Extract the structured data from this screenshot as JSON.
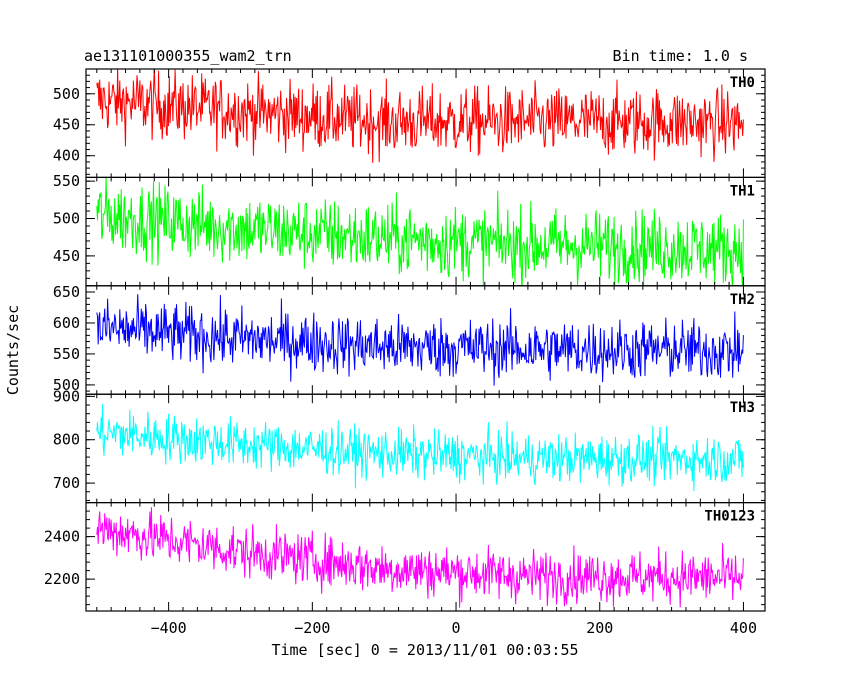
{
  "header": {
    "title": "ae131101000355_wam2_trn",
    "bin_time": "Bin time: 1.0 s"
  },
  "chart_data": {
    "type": "line",
    "xlabel": "Time [sec] 0 = 2013/11/01 00:03:55",
    "ylabel": "Counts/sec",
    "xlim": [
      -515,
      430
    ],
    "x_range_data": [
      -500,
      400
    ],
    "x_ticks": [
      -400,
      -200,
      0,
      200,
      400
    ],
    "panels": [
      {
        "name": "TH0",
        "color": "#ff0000",
        "ylim": [
          365,
          540
        ],
        "yticks": [
          400,
          450,
          500
        ],
        "trend": [
          [
            -500,
            490
          ],
          [
            -300,
            472
          ],
          [
            -100,
            455
          ],
          [
            100,
            455
          ],
          [
            300,
            455
          ],
          [
            400,
            452
          ]
        ],
        "noise_sd": 27
      },
      {
        "name": "TH1",
        "color": "#00ff00",
        "ylim": [
          410,
          555
        ],
        "yticks": [
          450,
          500,
          550
        ],
        "trend": [
          [
            -500,
            505
          ],
          [
            -300,
            487
          ],
          [
            -100,
            473
          ],
          [
            100,
            465
          ],
          [
            300,
            462
          ],
          [
            400,
            458
          ]
        ],
        "noise_sd": 24
      },
      {
        "name": "TH2",
        "color": "#0000ff",
        "ylim": [
          485,
          660
        ],
        "yticks": [
          500,
          550,
          600,
          650
        ],
        "trend": [
          [
            -500,
            592
          ],
          [
            -300,
            575
          ],
          [
            -100,
            562
          ],
          [
            100,
            558
          ],
          [
            300,
            556
          ],
          [
            400,
            555
          ]
        ],
        "noise_sd": 24
      },
      {
        "name": "TH3",
        "color": "#00ffff",
        "ylim": [
          655,
          905
        ],
        "yticks": [
          700,
          800,
          900
        ],
        "trend": [
          [
            -500,
            818
          ],
          [
            -300,
            790
          ],
          [
            -100,
            768
          ],
          [
            100,
            757
          ],
          [
            300,
            757
          ],
          [
            400,
            755
          ]
        ],
        "noise_sd": 28
      },
      {
        "name": "TH0123",
        "color": "#ff00ff",
        "ylim": [
          2050,
          2560
        ],
        "yticks": [
          2200,
          2400
        ],
        "trend": [
          [
            -500,
            2440
          ],
          [
            -300,
            2330
          ],
          [
            -100,
            2250
          ],
          [
            100,
            2215
          ],
          [
            300,
            2210
          ],
          [
            400,
            2205
          ]
        ],
        "noise_sd": 60
      }
    ]
  }
}
